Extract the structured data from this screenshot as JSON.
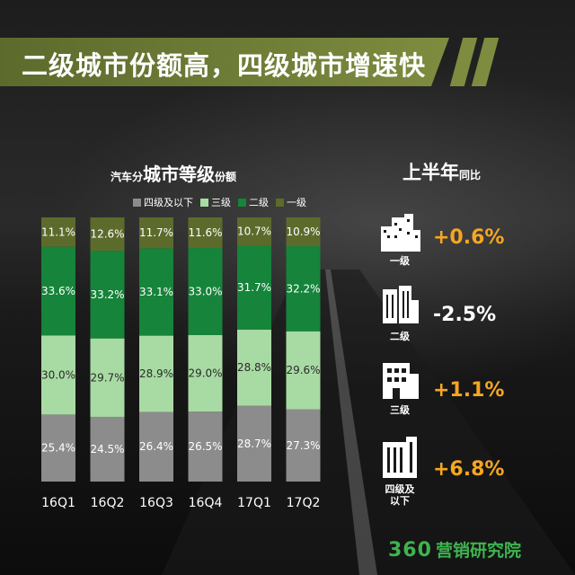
{
  "header": {
    "title": "二级城市份额高，四级城市增速快"
  },
  "chart_title": {
    "prefix": "汽车分",
    "main": "城市等级",
    "suffix": "份额"
  },
  "legend": [
    {
      "label": "四级及以下",
      "color": "#8c8c8c"
    },
    {
      "label": "三级",
      "color": "#a8dba3"
    },
    {
      "label": "二级",
      "color": "#16843a"
    },
    {
      "label": "一级",
      "color": "#5c6b2c"
    }
  ],
  "chart_data": {
    "type": "bar",
    "stacked": true,
    "categories": [
      "16Q1",
      "16Q2",
      "16Q3",
      "16Q4",
      "17Q1",
      "17Q2"
    ],
    "series": [
      {
        "name": "四级及以下",
        "values": [
          25.4,
          24.5,
          26.4,
          26.5,
          28.7,
          27.3
        ],
        "labels": [
          "25.4%",
          "24.5%",
          "26.4%",
          "26.5%",
          "28.7%",
          "27.3%"
        ],
        "color": "#8c8c8c"
      },
      {
        "name": "三级",
        "values": [
          30.0,
          29.7,
          28.9,
          29.0,
          28.8,
          29.6
        ],
        "labels": [
          "30.0%",
          "29.7%",
          "28.9%",
          "29.0%",
          "28.8%",
          "29.6%"
        ],
        "color": "#a8dba3"
      },
      {
        "name": "二级",
        "values": [
          33.6,
          33.2,
          33.1,
          33.0,
          31.7,
          32.2
        ],
        "labels": [
          "33.6%",
          "33.2%",
          "33.1%",
          "33.0%",
          "31.7%",
          "32.2%"
        ],
        "color": "#16843a"
      },
      {
        "name": "一级",
        "values": [
          11.1,
          12.6,
          11.7,
          11.6,
          10.7,
          10.9
        ],
        "labels": [
          "11.1%",
          "12.6%",
          "11.7%",
          "11.6%",
          "10.7%",
          "10.9%"
        ],
        "color": "#5c6b2c"
      }
    ],
    "ylim": [
      0,
      100
    ]
  },
  "yoy": {
    "title_main": "上半年",
    "title_suffix": "同比",
    "items": [
      {
        "label": "一级",
        "value": "+0.6%",
        "color": "#f5a623",
        "icon": "city-cluster-icon"
      },
      {
        "label": "二级",
        "value": "-2.5%",
        "color": "#ffffff",
        "icon": "tall-tower-icon"
      },
      {
        "label": "三级",
        "value": "+1.1%",
        "color": "#f5a623",
        "icon": "mid-building-icon"
      },
      {
        "label": "四级及\n以下",
        "value": "+6.8%",
        "color": "#f5a623",
        "icon": "small-building-icon"
      }
    ]
  },
  "logo": {
    "number": "360",
    "text": "营销研究院"
  }
}
